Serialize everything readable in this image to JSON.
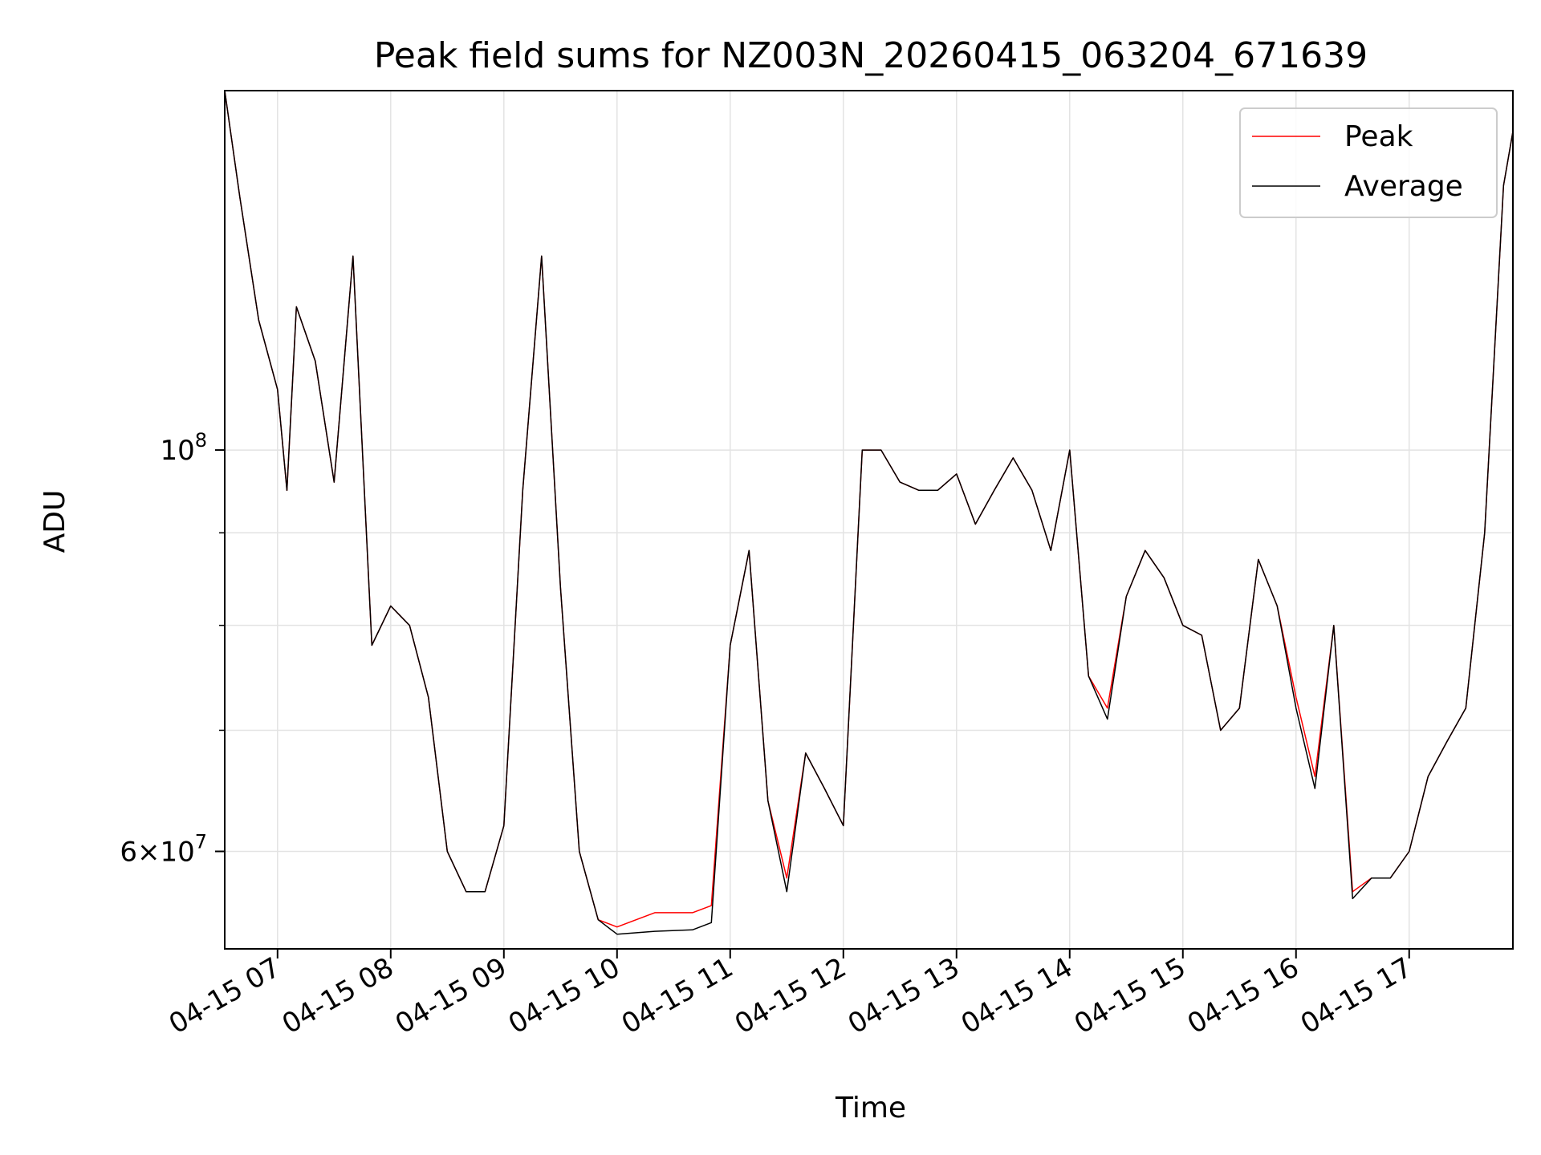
{
  "chart_data": {
    "type": "line",
    "title": "Peak field sums for NZ003N_20260415_063204_671639",
    "xlabel": "Time",
    "ylabel": "ADU",
    "yscale": "log",
    "xlim": [
      "2026-04-15 06:32",
      "2026-04-15 17:55"
    ],
    "ylim": [
      53000000,
      158000000
    ],
    "grid": true,
    "legend": "top-right",
    "x_ticks": [
      "04-15 07",
      "04-15 08",
      "04-15 09",
      "04-15 10",
      "04-15 11",
      "04-15 12",
      "04-15 13",
      "04-15 14",
      "04-15 15",
      "04-15 16",
      "04-15 17"
    ],
    "x_tick_hours": [
      7,
      8,
      9,
      10,
      11,
      12,
      13,
      14,
      15,
      16,
      17
    ],
    "y_ticks": [
      {
        "value": 100000000,
        "base": "10",
        "exp": "8"
      },
      {
        "value": 60000000,
        "mantissa": "6",
        "base": "10",
        "exp": "7"
      }
    ],
    "y_minor_ticks": [
      70000000,
      80000000,
      90000000
    ],
    "colors": {
      "Peak": "#ff0000",
      "Average": "#000000"
    },
    "x_times": [
      "06:32",
      "06:40",
      "06:50",
      "07:00",
      "07:05",
      "07:10",
      "07:20",
      "07:30",
      "07:40",
      "07:50",
      "08:00",
      "08:10",
      "08:20",
      "08:30",
      "08:40",
      "08:50",
      "09:00",
      "09:10",
      "09:20",
      "09:30",
      "09:40",
      "09:50",
      "10:00",
      "10:20",
      "10:40",
      "10:50",
      "11:00",
      "11:10",
      "11:20",
      "11:30",
      "11:40",
      "11:50",
      "12:00",
      "12:10",
      "12:20",
      "12:30",
      "12:40",
      "12:50",
      "13:00",
      "13:10",
      "13:20",
      "13:30",
      "13:40",
      "13:50",
      "14:00",
      "14:10",
      "14:20",
      "14:30",
      "14:40",
      "14:50",
      "15:00",
      "15:10",
      "15:20",
      "15:30",
      "15:40",
      "15:50",
      "16:00",
      "16:10",
      "16:20",
      "16:30",
      "16:40",
      "16:50",
      "17:00",
      "17:10",
      "17:20",
      "17:30",
      "17:40",
      "17:50",
      "17:55"
    ],
    "series": [
      {
        "name": "Peak",
        "values": [
          158000000,
          138000000,
          118000000,
          108000000,
          95000000,
          120000000,
          112000000,
          96000000,
          128000000,
          78000000,
          82000000,
          80000000,
          73000000,
          60000000,
          57000000,
          57000000,
          62000000,
          95000000,
          128000000,
          84000000,
          60000000,
          55000000,
          54500000,
          55500000,
          55500000,
          56000000,
          78000000,
          88000000,
          64000000,
          58000000,
          68000000,
          65000000,
          62000000,
          100000000,
          100000000,
          96000000,
          95000000,
          95000000,
          97000000,
          91000000,
          95000000,
          99000000,
          95000000,
          88000000,
          100000000,
          75000000,
          72000000,
          83000000,
          88000000,
          85000000,
          80000000,
          79000000,
          70000000,
          72000000,
          87000000,
          82000000,
          73000000,
          66000000,
          80000000,
          57000000,
          58000000,
          58000000,
          60000000,
          66000000,
          69000000,
          72000000,
          90000000,
          140000000,
          150000000
        ]
      },
      {
        "name": "Average",
        "values": [
          158000000,
          138000000,
          118000000,
          108000000,
          95000000,
          120000000,
          112000000,
          96000000,
          128000000,
          78000000,
          82000000,
          80000000,
          73000000,
          60000000,
          57000000,
          57000000,
          62000000,
          95000000,
          128000000,
          84000000,
          60000000,
          55000000,
          54000000,
          54200000,
          54300000,
          54800000,
          78000000,
          88000000,
          64000000,
          57000000,
          68000000,
          65000000,
          62000000,
          100000000,
          100000000,
          96000000,
          95000000,
          95000000,
          97000000,
          91000000,
          95000000,
          99000000,
          95000000,
          88000000,
          100000000,
          75000000,
          71000000,
          83000000,
          88000000,
          85000000,
          80000000,
          79000000,
          70000000,
          72000000,
          87000000,
          82000000,
          72000000,
          65000000,
          80000000,
          56500000,
          58000000,
          58000000,
          60000000,
          66000000,
          69000000,
          72000000,
          90000000,
          140000000,
          150000000
        ]
      }
    ]
  }
}
